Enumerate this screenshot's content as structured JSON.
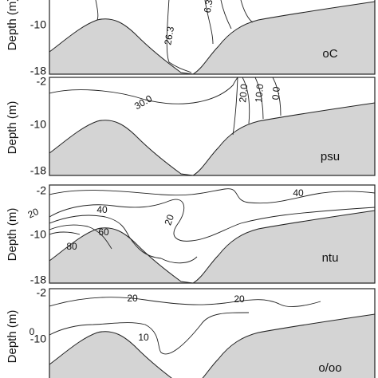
{
  "panels": [
    {
      "y_label": "Depth (m)",
      "unit": "oC",
      "yticks": [
        "-10",
        "-18"
      ],
      "contour_labels": [
        "26.3",
        "6.3"
      ]
    },
    {
      "y_label": "Depth (m)",
      "unit": "psu",
      "yticks": [
        "-2",
        "-10",
        "-18"
      ],
      "contour_labels": [
        "30.0",
        "20.0",
        "10.0",
        "0.0"
      ]
    },
    {
      "y_label": "Depth (m)",
      "unit": "ntu",
      "yticks": [
        "-2",
        "-10",
        "-18"
      ],
      "contour_labels": [
        "40",
        "20",
        "40",
        "60",
        "80",
        "20"
      ]
    },
    {
      "y_label": "Depth (m)",
      "unit": "o/oo",
      "yticks": [
        "-2",
        "-10"
      ],
      "contour_labels": [
        "20",
        "20",
        "0",
        "10"
      ]
    }
  ]
}
